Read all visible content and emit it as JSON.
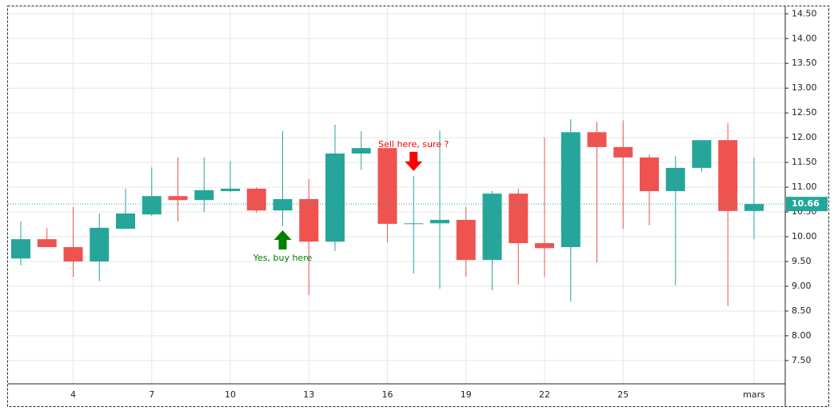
{
  "chart_data": {
    "type": "candlestick",
    "categories": [
      null,
      null,
      "4",
      null,
      null,
      "7",
      null,
      null,
      "10",
      null,
      null,
      "13",
      null,
      null,
      "16",
      null,
      null,
      "19",
      null,
      null,
      "22",
      null,
      null,
      "25",
      null,
      null,
      null,
      null,
      "mars"
    ],
    "open": [
      9.56,
      9.95,
      9.79,
      9.5,
      10.16,
      10.45,
      10.82,
      10.74,
      10.92,
      10.97,
      10.53,
      10.76,
      9.9,
      11.68,
      11.79,
      10.26,
      10.27,
      10.34,
      9.53,
      10.87,
      9.87,
      9.79,
      12.11,
      11.81,
      11.6,
      10.92,
      11.39,
      11.95,
      10.52
    ],
    "high": [
      10.31,
      10.18,
      10.6,
      10.47,
      10.97,
      11.4,
      11.6,
      11.6,
      11.53,
      11.0,
      12.13,
      11.16,
      12.26,
      12.13,
      11.79,
      11.23,
      12.15,
      10.6,
      10.92,
      10.97,
      12.0,
      12.37,
      12.32,
      12.35,
      11.66,
      11.63,
      11.95,
      12.29,
      11.6
    ],
    "low": [
      9.42,
      9.79,
      9.19,
      9.1,
      10.16,
      10.42,
      10.31,
      10.5,
      10.9,
      10.48,
      10.21,
      8.82,
      9.71,
      11.35,
      9.89,
      9.26,
      8.95,
      9.19,
      8.92,
      9.03,
      9.19,
      8.69,
      9.48,
      10.16,
      10.23,
      9.02,
      11.31,
      8.6,
      9.95
    ],
    "close": [
      9.95,
      9.79,
      9.5,
      10.18,
      10.47,
      10.82,
      10.74,
      10.94,
      10.97,
      10.53,
      10.76,
      9.9,
      11.68,
      11.79,
      10.26,
      10.27,
      10.34,
      9.53,
      10.87,
      9.87,
      9.77,
      12.11,
      11.81,
      11.6,
      10.92,
      11.39,
      11.95,
      10.52,
      10.66
    ],
    "up_color": "#26a69a",
    "down_color": "#ef5350",
    "ylim": [
      7.03,
      14.65
    ],
    "yticks": [
      {
        "value": 7.5,
        "label": "7.50"
      },
      {
        "value": 8,
        "label": "8.00"
      },
      {
        "value": 8.5,
        "label": "8.50"
      },
      {
        "value": 9,
        "label": "9.00"
      },
      {
        "value": 9.5,
        "label": "9.50"
      },
      {
        "value": 10,
        "label": "10.00"
      },
      {
        "value": 10.5,
        "label": "10.50"
      },
      {
        "value": 11,
        "label": "11.00"
      },
      {
        "value": 11.5,
        "label": "11.50"
      },
      {
        "value": 12,
        "label": "12.00"
      },
      {
        "value": 12.5,
        "label": "12.50"
      },
      {
        "value": 13,
        "label": "13.00"
      },
      {
        "value": 13.5,
        "label": "13.50"
      },
      {
        "value": 14,
        "label": "14.00"
      },
      {
        "value": 14.5,
        "label": "14.50"
      }
    ],
    "grid": true,
    "annotations": [
      {
        "text": "Yes, buy here",
        "index": 10,
        "position": "below",
        "color": "#008000"
      },
      {
        "text": "Sell here, sure ?",
        "index": 15,
        "position": "above",
        "color": "#ff0000"
      }
    ]
  }
}
